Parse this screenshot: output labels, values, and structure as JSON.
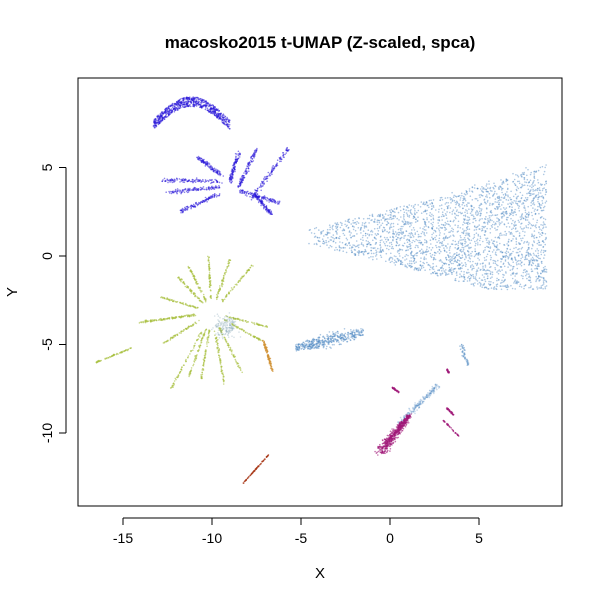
{
  "chart_data": {
    "type": "scatter",
    "title": "macosko2015 t-UMAP (Z-scaled, spca)",
    "xlabel": "X",
    "ylabel": "Y",
    "xlim": [
      -17.5,
      9.5
    ],
    "ylim": [
      -14,
      9.5
    ],
    "xticks": [
      -15,
      -10,
      -5,
      0,
      5
    ],
    "yticks": [
      -10,
      -5,
      0,
      5
    ],
    "xtick_labels": [
      "-15",
      "-10",
      "-5",
      "0",
      "5"
    ],
    "ytick_labels": [
      "-10",
      "-5",
      "0",
      "5"
    ],
    "grid": false,
    "legend": "none",
    "clusters": [
      {
        "color": "#4a86c0",
        "shape": "wedge",
        "x_range": [
          -4.8,
          8.8
        ],
        "y_range": [
          -1.9,
          5.4
        ]
      },
      {
        "color": "#4a86c0",
        "shape": "blob",
        "x_range": [
          -5.3,
          -1.5
        ],
        "y_range": [
          -6.0,
          -3.7
        ]
      },
      {
        "color": "#4a86c0",
        "shape": "fan",
        "x_range": [
          0.0,
          4.7
        ],
        "y_range": [
          -10.8,
          -4.5
        ]
      },
      {
        "color": "#2a18d8",
        "shape": "arc",
        "x_range": [
          -13.3,
          -9.0
        ],
        "y_range": [
          6.8,
          9.1
        ]
      },
      {
        "color": "#2a18d8",
        "shape": "butterfly",
        "x_range": [
          -12.8,
          -5.6
        ],
        "y_range": [
          2.3,
          6.2
        ]
      },
      {
        "color": "#a8c040",
        "shape": "starburst",
        "x_range": [
          -14.8,
          -6.8
        ],
        "y_range": [
          -7.5,
          0.0
        ]
      },
      {
        "color": "#a8c040",
        "shape": "streak",
        "x_range": [
          -16.5,
          -14.5
        ],
        "y_range": [
          -6.0,
          -5.2
        ]
      },
      {
        "color": "#d09030",
        "shape": "streak",
        "x_range": [
          -7.3,
          -6.5
        ],
        "y_range": [
          -6.5,
          -4.8
        ]
      },
      {
        "color": "#a01878",
        "shape": "blob",
        "x_range": [
          -1.3,
          1.2
        ],
        "y_range": [
          -11.6,
          -8.8
        ]
      },
      {
        "color": "#a01878",
        "shape": "fragments",
        "x_range": [
          2.7,
          3.9
        ],
        "y_range": [
          -10.2,
          -6.4
        ]
      },
      {
        "color": "#a83818",
        "shape": "streak",
        "x_range": [
          -8.3,
          -6.8
        ],
        "y_range": [
          -12.9,
          -11.2
        ]
      }
    ]
  }
}
